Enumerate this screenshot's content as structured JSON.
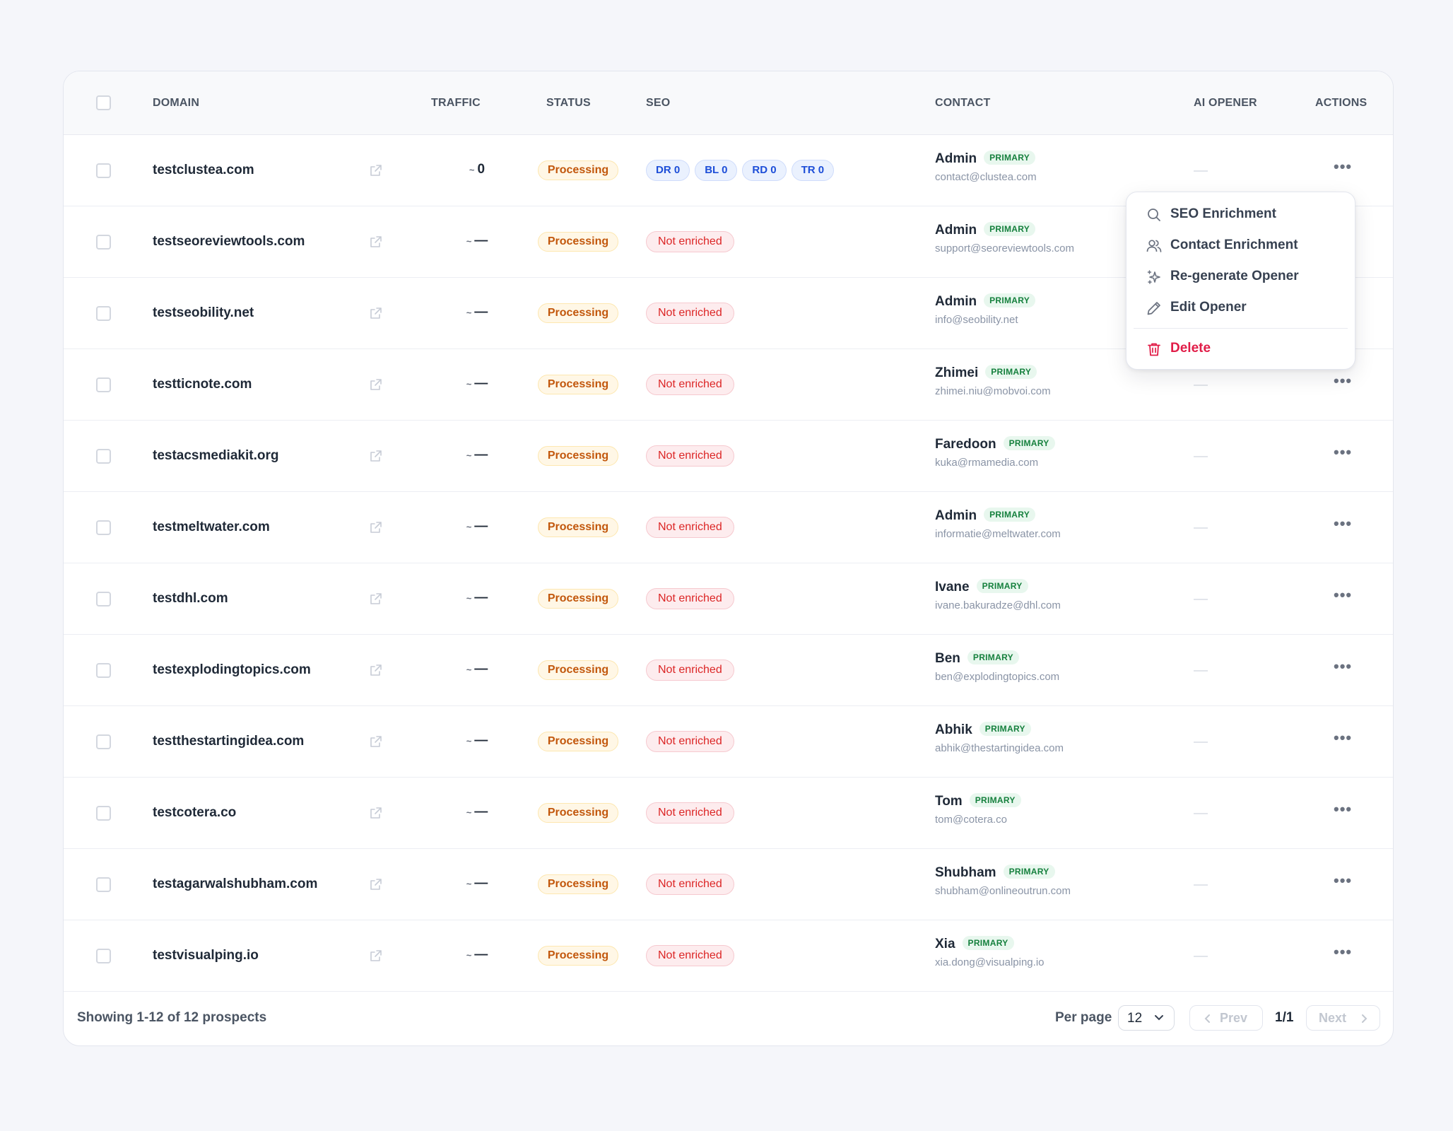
{
  "table": {
    "headers": {
      "domain": "DOMAIN",
      "traffic": "TRAFFIC",
      "status": "STATUS",
      "seo": "SEO",
      "contact": "CONTACT",
      "ai_opener": "AI OPENER",
      "actions": "ACTIONS"
    },
    "traffic_tilde": "~",
    "rows": [
      {
        "domain": "testclustea.com",
        "traffic": "0",
        "status": "Processing",
        "seo": [
          "DR 0",
          "BL 0",
          "RD 0",
          "TR 0"
        ],
        "contact_name": "Admin",
        "contact_badge": "PRIMARY",
        "contact_email": "contact@clustea.com"
      },
      {
        "domain": "testseoreviewtools.com",
        "traffic": "—",
        "status": "Processing",
        "seo_status": "Not enriched",
        "contact_name": "Admin",
        "contact_badge": "PRIMARY",
        "contact_email": "support@seoreviewtools.com"
      },
      {
        "domain": "testseobility.net",
        "traffic": "—",
        "status": "Processing",
        "seo_status": "Not enriched",
        "contact_name": "Admin",
        "contact_badge": "PRIMARY",
        "contact_email": "info@seobility.net"
      },
      {
        "domain": "testticnote.com",
        "traffic": "—",
        "status": "Processing",
        "seo_status": "Not enriched",
        "contact_name": "Zhimei",
        "contact_badge": "PRIMARY",
        "contact_email": "zhimei.niu@mobvoi.com"
      },
      {
        "domain": "testacsmediakit.org",
        "traffic": "—",
        "status": "Processing",
        "seo_status": "Not enriched",
        "contact_name": "Faredoon",
        "contact_badge": "PRIMARY",
        "contact_email": "kuka@rmamedia.com"
      },
      {
        "domain": "testmeltwater.com",
        "traffic": "—",
        "status": "Processing",
        "seo_status": "Not enriched",
        "contact_name": "Admin",
        "contact_badge": "PRIMARY",
        "contact_email": "informatie@meltwater.com"
      },
      {
        "domain": "testdhl.com",
        "traffic": "—",
        "status": "Processing",
        "seo_status": "Not enriched",
        "contact_name": "Ivane",
        "contact_badge": "PRIMARY",
        "contact_email": "ivane.bakuradze@dhl.com"
      },
      {
        "domain": "testexplodingtopics.com",
        "traffic": "—",
        "status": "Processing",
        "seo_status": "Not enriched",
        "contact_name": "Ben",
        "contact_badge": "PRIMARY",
        "contact_email": "ben@explodingtopics.com"
      },
      {
        "domain": "testthestartingidea.com",
        "traffic": "—",
        "status": "Processing",
        "seo_status": "Not enriched",
        "contact_name": "Abhik",
        "contact_badge": "PRIMARY",
        "contact_email": "abhik@thestartingidea.com"
      },
      {
        "domain": "testcotera.co",
        "traffic": "—",
        "status": "Processing",
        "seo_status": "Not enriched",
        "contact_name": "Tom",
        "contact_badge": "PRIMARY",
        "contact_email": "tom@cotera.co"
      },
      {
        "domain": "testagarwalshubham.com",
        "traffic": "—",
        "status": "Processing",
        "seo_status": "Not enriched",
        "contact_name": "Shubham",
        "contact_badge": "PRIMARY",
        "contact_email": "shubham@onlineoutrun.com"
      },
      {
        "domain": "testvisualping.io",
        "traffic": "—",
        "status": "Processing",
        "seo_status": "Not enriched",
        "contact_name": "Xia",
        "contact_badge": "PRIMARY",
        "contact_email": "xia.dong@visualping.io"
      }
    ]
  },
  "actions_menu": {
    "items": [
      {
        "label": "SEO Enrichment",
        "icon": "search-icon"
      },
      {
        "label": "Contact Enrichment",
        "icon": "users-icon"
      },
      {
        "label": "Re-generate Opener",
        "icon": "sparkles-icon"
      },
      {
        "label": "Edit Opener",
        "icon": "pencil-icon"
      }
    ],
    "delete_label": "Delete",
    "delete_icon": "trash-icon"
  },
  "footer": {
    "showing": "Showing 1-12 of 12 prospects",
    "per_page_label": "Per page",
    "per_page_value": "12",
    "prev_label": "Prev",
    "page_indicator": "1/1",
    "next_label": "Next"
  },
  "colors": {
    "processing": "#c2570c",
    "not_enriched": "#dc2626",
    "seo_pill": "#1d4ed8",
    "primary_badge": "#15803d",
    "delete": "#e11d48"
  }
}
